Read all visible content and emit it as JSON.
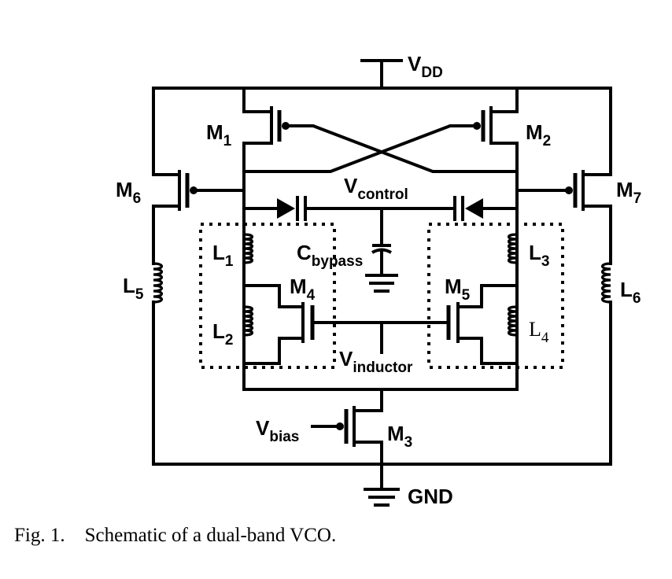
{
  "labels": {
    "vdd": {
      "base": "V",
      "sub": "DD"
    },
    "m1": {
      "base": "M",
      "sub": "1"
    },
    "m2": {
      "base": "M",
      "sub": "2"
    },
    "m3": {
      "base": "M",
      "sub": "3"
    },
    "m4": {
      "base": "M",
      "sub": "4"
    },
    "m5": {
      "base": "M",
      "sub": "5"
    },
    "m6": {
      "base": "M",
      "sub": "6"
    },
    "m7": {
      "base": "M",
      "sub": "7"
    },
    "vcontrol": {
      "base": "V",
      "sub": "control"
    },
    "cbypass": {
      "base": "C",
      "sub": "bypass"
    },
    "l1": {
      "base": "L",
      "sub": "1"
    },
    "l2": {
      "base": "L",
      "sub": "2"
    },
    "l3": {
      "base": "L",
      "sub": "3"
    },
    "l4": {
      "base": "L",
      "sub": "4"
    },
    "l5": {
      "base": "L",
      "sub": "5"
    },
    "l6": {
      "base": "L",
      "sub": "6"
    },
    "vinductor": {
      "base": "V",
      "sub": "inductor"
    },
    "vbias": {
      "base": "V",
      "sub": "bias"
    },
    "gnd": "GND"
  },
  "caption": {
    "number": "Fig. 1.",
    "text": "Schematic of a dual-band VCO."
  }
}
